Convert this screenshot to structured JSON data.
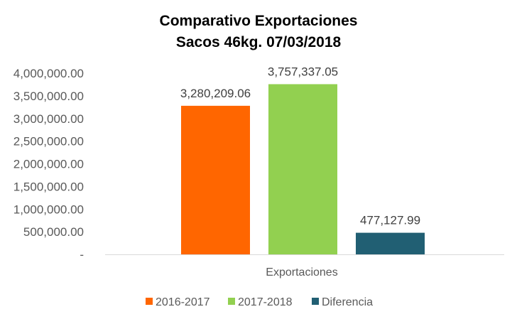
{
  "chart_data": {
    "type": "bar",
    "title": "Comparativo Exportaciones",
    "subtitle": "Sacos 46kg. 07/03/2018",
    "categories": [
      "Exportaciones"
    ],
    "series": [
      {
        "name": "2016-2017",
        "values": [
          3280209.06
        ],
        "label": "3,280,209.06",
        "color": "#FF6600"
      },
      {
        "name": "2017-2018",
        "values": [
          3757337.05
        ],
        "label": "3,757,337.05",
        "color": "#92D050"
      },
      {
        "name": "Diferencia",
        "values": [
          477127.99
        ],
        "label": "477,127.99",
        "color": "#215F73"
      }
    ],
    "yticks": [
      {
        "value": 0,
        "label": "-"
      },
      {
        "value": 500000,
        "label": "500,000.00"
      },
      {
        "value": 1000000,
        "label": "1,000,000.00"
      },
      {
        "value": 1500000,
        "label": "1,500,000.00"
      },
      {
        "value": 2000000,
        "label": "2,000,000.00"
      },
      {
        "value": 2500000,
        "label": "2,500,000.00"
      },
      {
        "value": 3000000,
        "label": "3,000,000.00"
      },
      {
        "value": 3500000,
        "label": "3,500,000.00"
      },
      {
        "value": 4000000,
        "label": "4,000,000.00"
      }
    ],
    "ylim": [
      0,
      4000000
    ],
    "grid": false,
    "legend_position": "bottom"
  }
}
